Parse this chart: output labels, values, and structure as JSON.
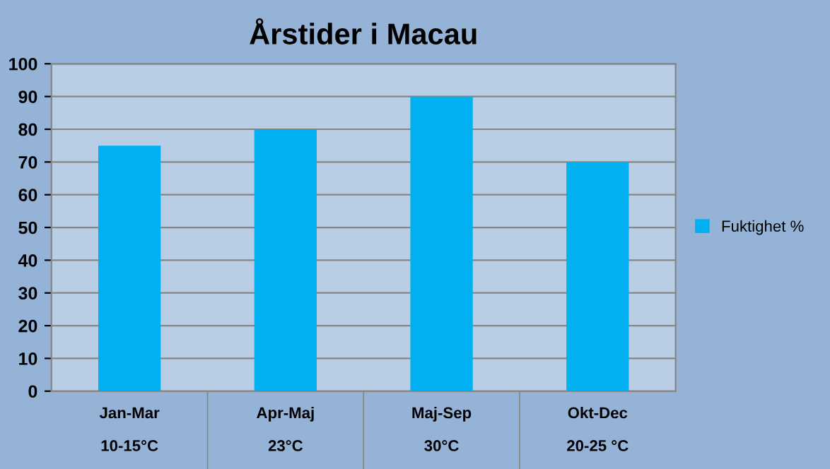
{
  "chart_data": {
    "type": "bar",
    "title": "Årstider i Macau",
    "categories": [
      "Jan-Mar\n10-15°C",
      "Apr-Maj\n23°C",
      "Maj-Sep\n30°C",
      "Okt-Dec\n20-25 °C"
    ],
    "series": [
      {
        "name": "Fuktighet %",
        "color": "#00b0f0",
        "values": [
          75,
          80,
          90,
          70
        ]
      }
    ],
    "ylim": [
      0,
      100
    ],
    "yticks": [
      0,
      10,
      20,
      30,
      40,
      50,
      60,
      70,
      80,
      90,
      100
    ],
    "grid": "y",
    "legend": "right"
  }
}
